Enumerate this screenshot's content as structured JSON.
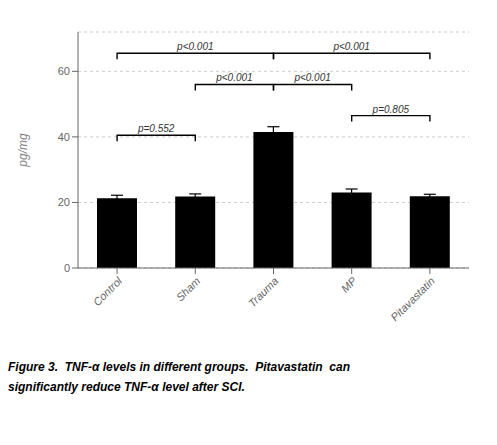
{
  "chart_data": {
    "type": "bar",
    "categories": [
      "Control",
      "Sham",
      "Trauma",
      "MP",
      "Pitavastatin"
    ],
    "values": [
      21.3,
      21.8,
      41.5,
      23.0,
      21.9
    ],
    "errors": [
      0.9,
      0.8,
      1.6,
      1.1,
      0.6
    ],
    "color": "#000000",
    "ylabel": "pg/mg",
    "ylim": [
      0,
      72
    ],
    "yticks": [
      0,
      20,
      40,
      60
    ],
    "annotations": [
      {
        "x1": "Control",
        "x2": "Sham",
        "y": 40.5,
        "label": "p=0.552"
      },
      {
        "x1": "Sham",
        "x2": "Trauma",
        "y": 56.0,
        "label": "p<0.001"
      },
      {
        "x1": "Trauma",
        "x2": "MP",
        "y": 56.0,
        "label": "p<0.001"
      },
      {
        "x1": "Control",
        "x2": "Trauma",
        "y": 65.5,
        "label": "p<0.001"
      },
      {
        "x1": "Trauma",
        "x2": "Pitavastatin",
        "y": 65.5,
        "label": "p<0.001"
      },
      {
        "x1": "MP",
        "x2": "Pitavastatin",
        "y": 46.5,
        "label": "p=0.805"
      }
    ],
    "caption": [
      "Figure 3.  TNF-α levels in different groups.  Pitavastatin  can",
      "significantly reduce TNF-α level after SCI."
    ]
  }
}
